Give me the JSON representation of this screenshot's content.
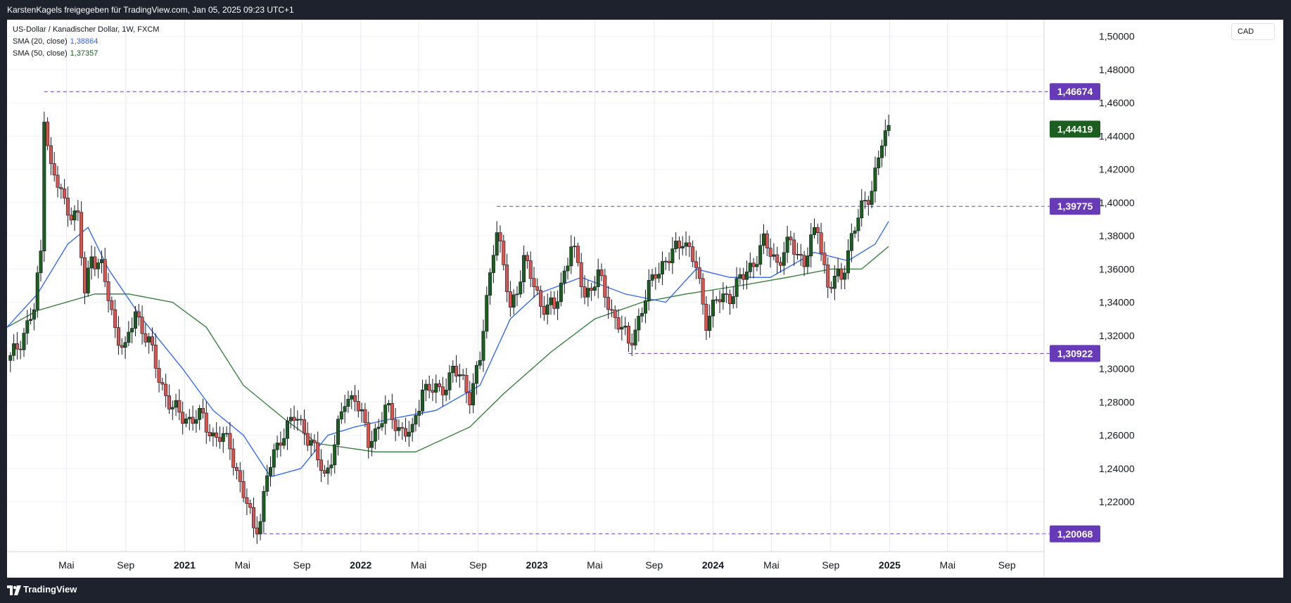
{
  "header": {
    "text": "KarstenKagels freigegeben für TradingView.com, Jan 05, 2025 09:23 UTC+1"
  },
  "legend": {
    "title": "US-Dollar / Kanadischer Dollar, 1W, FXCM",
    "sma20_label": "SMA (20, close)",
    "sma20_value": "1,38864",
    "sma50_label": "SMA (50, close)",
    "sma50_value": "1,37357"
  },
  "currency_button": "CAD",
  "footer": {
    "brand": "TradingView"
  },
  "colors": {
    "up": "#1b5e20",
    "down": "#d9534f",
    "sma20": "#2962ff",
    "sma50": "#2e7d32",
    "level": "#673ab7",
    "last_price": "#1b5e20"
  },
  "chart_data": {
    "type": "candlestick",
    "title": "US-Dollar / Kanadischer Dollar, 1W, FXCM",
    "ylim": [
      1.19,
      1.51
    ],
    "y_ticks": [
      1.22,
      1.24,
      1.26,
      1.28,
      1.3,
      1.32,
      1.34,
      1.36,
      1.38,
      1.4,
      1.42,
      1.44,
      1.46,
      1.48,
      1.5
    ],
    "y_tick_labels": [
      "1,22000",
      "1,24000",
      "1,26000",
      "1,28000",
      "1,30000",
      "1,32000",
      "1,34000",
      "1,36000",
      "1,38000",
      "1,40000",
      "1,42000",
      "1,44000",
      "1,46000",
      "1,48000",
      "1,50000"
    ],
    "x_range": [
      "2019-12-30",
      "2025-11-17"
    ],
    "x_ticks": [
      {
        "date": "2020-05-01",
        "label": "Mai",
        "bold": false
      },
      {
        "date": "2020-09-01",
        "label": "Sep",
        "bold": false
      },
      {
        "date": "2021-01-01",
        "label": "2021",
        "bold": true
      },
      {
        "date": "2021-05-01",
        "label": "Mai",
        "bold": false
      },
      {
        "date": "2021-09-01",
        "label": "Sep",
        "bold": false
      },
      {
        "date": "2022-01-01",
        "label": "2022",
        "bold": true
      },
      {
        "date": "2022-05-01",
        "label": "Mai",
        "bold": false
      },
      {
        "date": "2022-09-01",
        "label": "Sep",
        "bold": false
      },
      {
        "date": "2023-01-01",
        "label": "2023",
        "bold": true
      },
      {
        "date": "2023-05-01",
        "label": "Mai",
        "bold": false
      },
      {
        "date": "2023-09-01",
        "label": "Sep",
        "bold": false
      },
      {
        "date": "2024-01-01",
        "label": "2024",
        "bold": true
      },
      {
        "date": "2024-05-01",
        "label": "Mai",
        "bold": false
      },
      {
        "date": "2024-09-01",
        "label": "Sep",
        "bold": false
      },
      {
        "date": "2025-01-01",
        "label": "2025",
        "bold": true
      },
      {
        "date": "2025-05-01",
        "label": "Mai",
        "bold": false
      },
      {
        "date": "2025-09-01",
        "label": "Sep",
        "bold": false
      }
    ],
    "levels": [
      {
        "value": 1.46674,
        "label": "1,46674",
        "from": "2020-03-16"
      },
      {
        "value": 1.39775,
        "label": "1,39775",
        "from": "2022-10-10"
      },
      {
        "value": 1.30922,
        "label": "1,30922",
        "from": "2023-07-10"
      },
      {
        "value": 1.20068,
        "label": "1,20068",
        "from": "2021-05-31"
      }
    ],
    "last_price": {
      "value": 1.44419,
      "label": "1,44419"
    },
    "price_path": [
      [
        "2020-01-06",
        1.305
      ],
      [
        "2020-02-24",
        1.335
      ],
      [
        "2020-03-09",
        1.37
      ],
      [
        "2020-03-16",
        1.455
      ],
      [
        "2020-03-30",
        1.42
      ],
      [
        "2020-04-27",
        1.4
      ],
      [
        "2020-05-25",
        1.39
      ],
      [
        "2020-06-08",
        1.345
      ],
      [
        "2020-06-22",
        1.37
      ],
      [
        "2020-07-13",
        1.36
      ],
      [
        "2020-08-10",
        1.325
      ],
      [
        "2020-08-31",
        1.31
      ],
      [
        "2020-09-21",
        1.335
      ],
      [
        "2020-10-19",
        1.315
      ],
      [
        "2020-11-09",
        1.295
      ],
      [
        "2020-12-07",
        1.275
      ],
      [
        "2021-01-11",
        1.27
      ],
      [
        "2021-02-08",
        1.27
      ],
      [
        "2021-03-01",
        1.26
      ],
      [
        "2021-04-05",
        1.255
      ],
      [
        "2021-04-26",
        1.23
      ],
      [
        "2021-05-24",
        1.205
      ],
      [
        "2021-06-07",
        1.21
      ],
      [
        "2021-06-21",
        1.235
      ],
      [
        "2021-07-19",
        1.26
      ],
      [
        "2021-08-16",
        1.27
      ],
      [
        "2021-09-06",
        1.265
      ],
      [
        "2021-10-18",
        1.235
      ],
      [
        "2021-11-08",
        1.255
      ],
      [
        "2021-11-29",
        1.28
      ],
      [
        "2021-12-20",
        1.285
      ],
      [
        "2022-01-17",
        1.255
      ],
      [
        "2022-02-21",
        1.275
      ],
      [
        "2022-03-21",
        1.265
      ],
      [
        "2022-04-18",
        1.26
      ],
      [
        "2022-05-09",
        1.29
      ],
      [
        "2022-06-13",
        1.285
      ],
      [
        "2022-07-11",
        1.3
      ],
      [
        "2022-08-15",
        1.285
      ],
      [
        "2022-09-05",
        1.305
      ],
      [
        "2022-10-03",
        1.375
      ],
      [
        "2022-10-10",
        1.385
      ],
      [
        "2022-11-07",
        1.335
      ],
      [
        "2022-12-05",
        1.365
      ],
      [
        "2023-01-09",
        1.34
      ],
      [
        "2023-02-06",
        1.335
      ],
      [
        "2023-03-13",
        1.375
      ],
      [
        "2023-04-10",
        1.345
      ],
      [
        "2023-05-08",
        1.355
      ],
      [
        "2023-06-05",
        1.335
      ],
      [
        "2023-07-10",
        1.315
      ],
      [
        "2023-08-07",
        1.335
      ],
      [
        "2023-09-04",
        1.36
      ],
      [
        "2023-10-02",
        1.365
      ],
      [
        "2023-10-30",
        1.38
      ],
      [
        "2023-11-27",
        1.36
      ],
      [
        "2023-12-18",
        1.33
      ],
      [
        "2024-01-08",
        1.34
      ],
      [
        "2024-02-05",
        1.345
      ],
      [
        "2024-03-04",
        1.355
      ],
      [
        "2024-04-15",
        1.375
      ],
      [
        "2024-05-13",
        1.365
      ],
      [
        "2024-06-10",
        1.375
      ],
      [
        "2024-07-08",
        1.365
      ],
      [
        "2024-08-05",
        1.385
      ],
      [
        "2024-08-26",
        1.35
      ],
      [
        "2024-09-23",
        1.355
      ],
      [
        "2024-10-14",
        1.38
      ],
      [
        "2024-11-04",
        1.395
      ],
      [
        "2024-11-25",
        1.41
      ],
      [
        "2024-12-16",
        1.435
      ],
      [
        "2024-12-30",
        1.443
      ]
    ],
    "sma20_path": [
      [
        "2019-12-30",
        1.325
      ],
      [
        "2020-03-02",
        1.345
      ],
      [
        "2020-05-04",
        1.375
      ],
      [
        "2020-06-15",
        1.385
      ],
      [
        "2020-07-27",
        1.36
      ],
      [
        "2020-10-05",
        1.33
      ],
      [
        "2020-12-28",
        1.3
      ],
      [
        "2021-03-01",
        1.275
      ],
      [
        "2021-05-03",
        1.26
      ],
      [
        "2021-06-28",
        1.235
      ],
      [
        "2021-08-30",
        1.24
      ],
      [
        "2021-10-25",
        1.26
      ],
      [
        "2021-12-20",
        1.265
      ],
      [
        "2022-03-07",
        1.27
      ],
      [
        "2022-06-06",
        1.275
      ],
      [
        "2022-09-05",
        1.29
      ],
      [
        "2022-11-07",
        1.33
      ],
      [
        "2023-01-02",
        1.345
      ],
      [
        "2023-04-03",
        1.355
      ],
      [
        "2023-07-03",
        1.345
      ],
      [
        "2023-09-25",
        1.34
      ],
      [
        "2023-11-27",
        1.36
      ],
      [
        "2024-02-05",
        1.355
      ],
      [
        "2024-04-29",
        1.355
      ],
      [
        "2024-07-29",
        1.37
      ],
      [
        "2024-10-07",
        1.365
      ],
      [
        "2024-12-02",
        1.375
      ],
      [
        "2024-12-30",
        1.38864
      ]
    ],
    "sma50_path": [
      [
        "2019-12-30",
        1.325
      ],
      [
        "2020-03-02",
        1.335
      ],
      [
        "2020-06-29",
        1.345
      ],
      [
        "2020-09-07",
        1.345
      ],
      [
        "2020-12-07",
        1.34
      ],
      [
        "2021-02-15",
        1.325
      ],
      [
        "2021-05-03",
        1.29
      ],
      [
        "2021-07-26",
        1.27
      ],
      [
        "2021-10-04",
        1.255
      ],
      [
        "2022-01-31",
        1.25
      ],
      [
        "2022-04-25",
        1.25
      ],
      [
        "2022-08-15",
        1.265
      ],
      [
        "2022-10-24",
        1.285
      ],
      [
        "2023-01-30",
        1.31
      ],
      [
        "2023-05-01",
        1.33
      ],
      [
        "2023-08-07",
        1.34
      ],
      [
        "2023-11-06",
        1.345
      ],
      [
        "2024-02-26",
        1.35
      ],
      [
        "2024-06-03",
        1.355
      ],
      [
        "2024-09-02",
        1.36
      ],
      [
        "2024-11-04",
        1.36
      ],
      [
        "2024-12-30",
        1.37357
      ]
    ]
  }
}
